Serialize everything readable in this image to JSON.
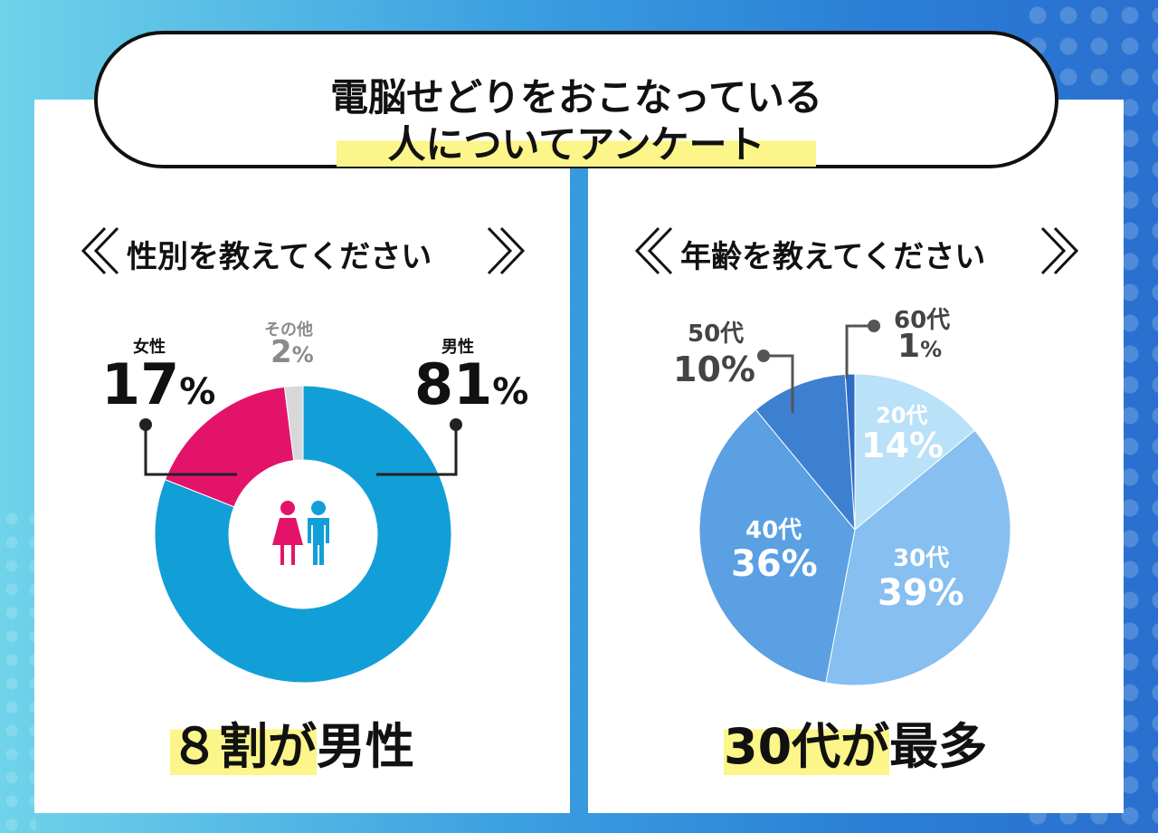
{
  "title": {
    "line1": "電脳せどりをおこなっている",
    "line2": "人についてアンケート"
  },
  "colors": {
    "male": "#129fd8",
    "female": "#e4136a",
    "other": "#d8d8d8",
    "highlight": "#fbf58a",
    "age20": "#b9e1f8",
    "age30": "#86bff0",
    "age40": "#5aa0e2",
    "age50": "#3d80d0",
    "age60": "#2f6cc4"
  },
  "chart_data": [
    {
      "type": "pie",
      "variant": "donut",
      "title": "性別を教えてください",
      "categories": [
        "男性",
        "女性",
        "その他"
      ],
      "values": [
        81,
        17,
        2
      ],
      "unit": "%",
      "summary_highlight": "８割が",
      "summary_rest": "男性"
    },
    {
      "type": "pie",
      "title": "年齢を教えてください",
      "categories": [
        "20代",
        "30代",
        "40代",
        "50代",
        "60代"
      ],
      "values": [
        14,
        39,
        36,
        10,
        1
      ],
      "unit": "%",
      "summary_highlight": "30代が",
      "summary_rest": "最多"
    }
  ],
  "gender": {
    "male": {
      "label": "男性",
      "value": "81",
      "unit": "%"
    },
    "female": {
      "label": "女性",
      "value": "17",
      "unit": "%"
    },
    "other": {
      "label": "その他",
      "value": "2",
      "unit": "%"
    },
    "icon": "male-female-people-icon"
  },
  "age": {
    "a20": {
      "label": "20代",
      "value": "14%"
    },
    "a30": {
      "label": "30代",
      "value": "39%"
    },
    "a40": {
      "label": "40代",
      "value": "36%"
    },
    "a50": {
      "label": "50代",
      "value": "10%"
    },
    "a60": {
      "label": "60代",
      "value": "1",
      "unit": "%"
    }
  }
}
